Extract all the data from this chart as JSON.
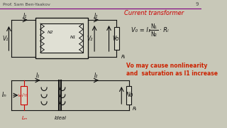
{
  "bg_color": "#c8c8b8",
  "header_line_color": "#800080",
  "header_text": "Prof. Sam Ben-Yaakov",
  "header_text_color": "#444444",
  "page_number": "9",
  "title": "Current transformer",
  "title_color": "#cc0000",
  "note_line1": "Vo may cause nonlinearity",
  "note_line2": "and  saturation as I1 increase",
  "note_color": "#cc2200",
  "ck": "#111111",
  "red": "#cc0000",
  "lw": 0.8
}
